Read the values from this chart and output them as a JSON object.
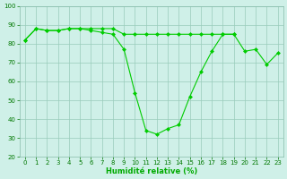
{
  "x": [
    0,
    1,
    2,
    3,
    4,
    5,
    6,
    7,
    8,
    9,
    10,
    11,
    12,
    13,
    14,
    15,
    16,
    17,
    18,
    19,
    20,
    21,
    22,
    23
  ],
  "line1_x": [
    0,
    1,
    2,
    3,
    4,
    5,
    6,
    7,
    8,
    9,
    10,
    11,
    12,
    13,
    14,
    15,
    16,
    17,
    18,
    19
  ],
  "line1_y": [
    82,
    88,
    87,
    87,
    88,
    88,
    88,
    88,
    88,
    85,
    85,
    85,
    85,
    85,
    85,
    85,
    85,
    85,
    85,
    85
  ],
  "line2_y": [
    82,
    88,
    87,
    87,
    88,
    88,
    87,
    86,
    85,
    77,
    54,
    34,
    32,
    35,
    37,
    52,
    65,
    76,
    85,
    85,
    76,
    77,
    69,
    75
  ],
  "bg_color": "#cff0e8",
  "line_color": "#00cc00",
  "grid_color": "#99ccbb",
  "xlabel": "Humidité relative (%)",
  "xlabel_color": "#00aa00",
  "ylim": [
    20,
    100
  ],
  "xlim": [
    -0.5,
    23.5
  ],
  "yticks": [
    20,
    30,
    40,
    50,
    60,
    70,
    80,
    90,
    100
  ],
  "xticks": [
    0,
    1,
    2,
    3,
    4,
    5,
    6,
    7,
    8,
    9,
    10,
    11,
    12,
    13,
    14,
    15,
    16,
    17,
    18,
    19,
    20,
    21,
    22,
    23
  ],
  "tick_fontsize": 5.0,
  "xlabel_fontsize": 6.0,
  "linewidth": 0.8,
  "markersize": 2.5
}
